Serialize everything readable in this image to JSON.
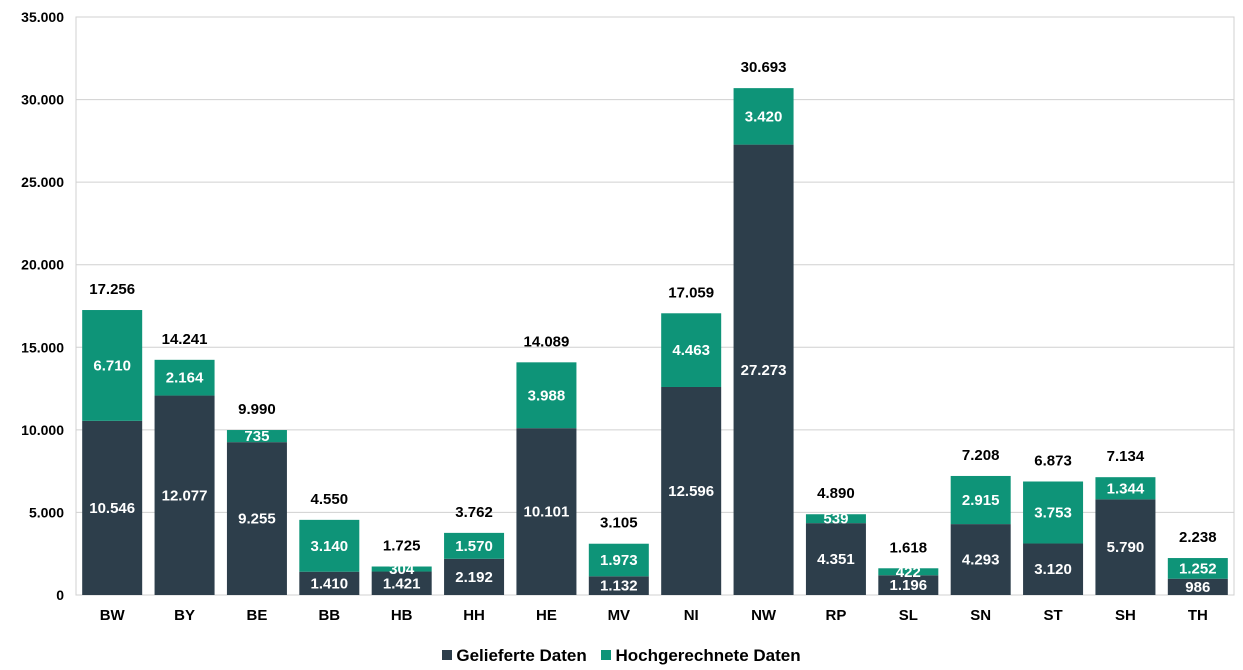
{
  "chart_data": {
    "type": "bar",
    "stacked": true,
    "categories": [
      "BW",
      "BY",
      "BE",
      "BB",
      "HB",
      "HH",
      "HE",
      "MV",
      "NI",
      "NW",
      "RP",
      "SL",
      "SN",
      "ST",
      "SH",
      "TH"
    ],
    "series": [
      {
        "name": "Gelieferte Daten",
        "color": "#2d3e4b",
        "values": [
          10546,
          12077,
          9255,
          1410,
          1421,
          2192,
          10101,
          1132,
          12596,
          27273,
          4351,
          1196,
          4293,
          3120,
          5790,
          986
        ]
      },
      {
        "name": "Hochgerechnete Daten",
        "color": "#0e9478",
        "values": [
          6710,
          2164,
          735,
          3140,
          304,
          1570,
          3988,
          1973,
          4463,
          3420,
          539,
          422,
          2915,
          3753,
          1344,
          1252
        ]
      }
    ],
    "totals": [
      17256,
      14241,
      9990,
      4550,
      1725,
      3762,
      14089,
      3105,
      17059,
      30693,
      4890,
      1618,
      7208,
      6873,
      7134,
      2238
    ],
    "ylim": [
      0,
      35000
    ],
    "yticks": [
      0,
      5000,
      10000,
      15000,
      20000,
      25000,
      30000,
      35000
    ],
    "ytick_labels": [
      "0",
      "5.000",
      "10.000",
      "15.000",
      "20.000",
      "25.000",
      "30.000",
      "35.000"
    ],
    "title": "",
    "xlabel": "",
    "ylabel": "",
    "grid": true,
    "legend": "bottom-center"
  }
}
